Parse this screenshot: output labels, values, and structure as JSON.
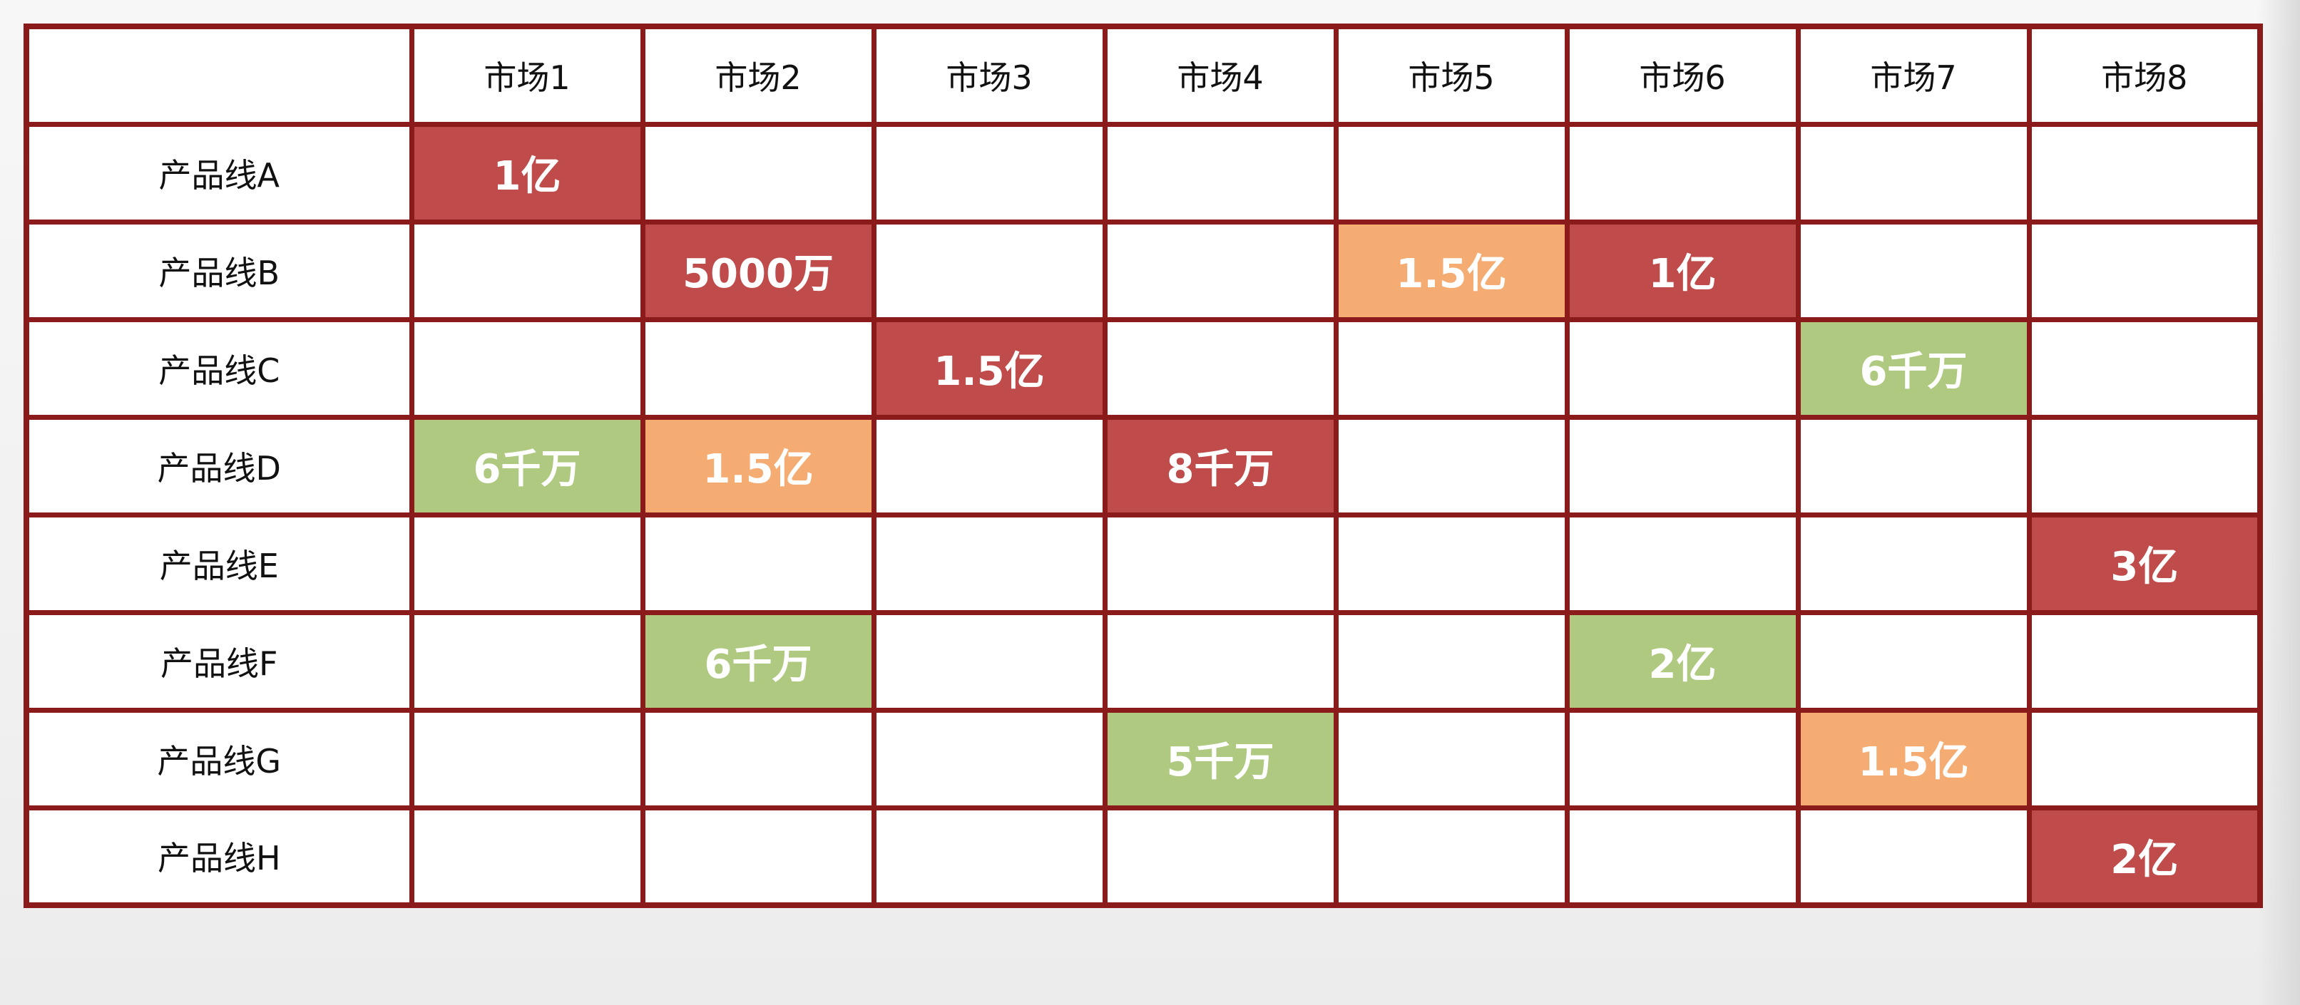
{
  "colors": {
    "red": "#bf4b4b",
    "orange": "#f4ac72",
    "green": "#afca80",
    "border": "#8b1a1a"
  },
  "chart_data": {
    "type": "table",
    "columns": [
      "市场1",
      "市场2",
      "市场3",
      "市场4",
      "市场5",
      "市场6",
      "市场7",
      "市场8"
    ],
    "rows": [
      {
        "label": "产品线A",
        "cells": [
          {
            "text": "1亿",
            "color": "red"
          },
          null,
          null,
          null,
          null,
          null,
          null,
          null
        ]
      },
      {
        "label": "产品线B",
        "cells": [
          null,
          {
            "text": "5000万",
            "color": "red"
          },
          null,
          null,
          {
            "text": "1.5亿",
            "color": "orange"
          },
          {
            "text": "1亿",
            "color": "red"
          },
          null,
          null
        ]
      },
      {
        "label": "产品线C",
        "cells": [
          null,
          null,
          {
            "text": "1.5亿",
            "color": "red"
          },
          null,
          null,
          null,
          {
            "text": "6千万",
            "color": "green"
          },
          null
        ]
      },
      {
        "label": "产品线D",
        "cells": [
          {
            "text": "6千万",
            "color": "green"
          },
          {
            "text": "1.5亿",
            "color": "orange"
          },
          null,
          {
            "text": "8千万",
            "color": "red"
          },
          null,
          null,
          null,
          null
        ]
      },
      {
        "label": "产品线E",
        "cells": [
          null,
          null,
          null,
          null,
          null,
          null,
          null,
          {
            "text": "3亿",
            "color": "red"
          }
        ]
      },
      {
        "label": "产品线F",
        "cells": [
          null,
          {
            "text": "6千万",
            "color": "green"
          },
          null,
          null,
          null,
          {
            "text": "2亿",
            "color": "green"
          },
          null,
          null
        ]
      },
      {
        "label": "产品线G",
        "cells": [
          null,
          null,
          null,
          {
            "text": "5千万",
            "color": "green"
          },
          null,
          null,
          {
            "text": "1.5亿",
            "color": "orange"
          },
          null
        ]
      },
      {
        "label": "产品线H",
        "cells": [
          null,
          null,
          null,
          null,
          null,
          null,
          null,
          {
            "text": "2亿",
            "color": "red"
          }
        ]
      }
    ]
  }
}
